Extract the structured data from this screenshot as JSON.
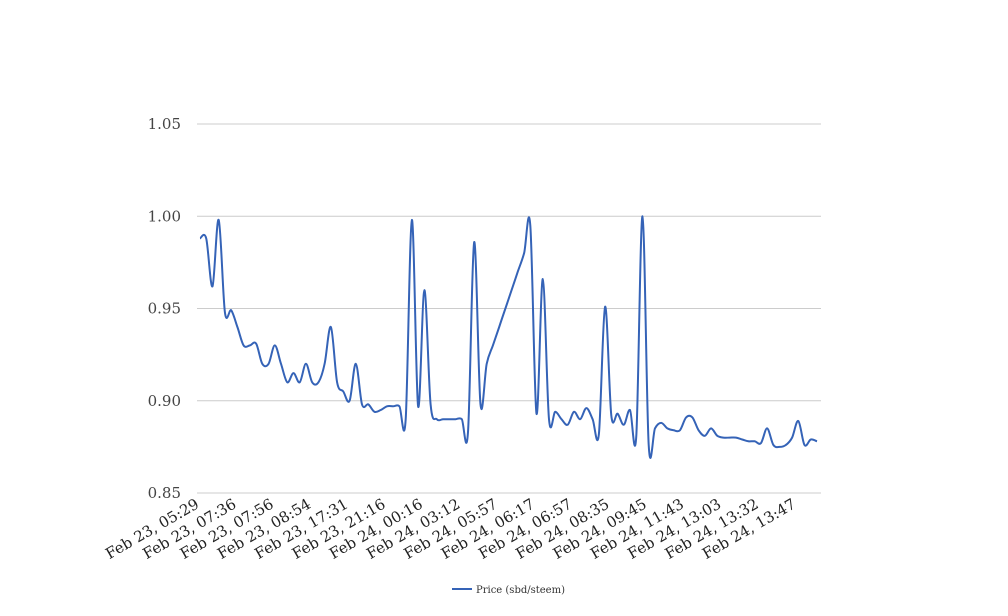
{
  "chart_data": {
    "type": "line",
    "ylim": [
      0.85,
      1.05
    ],
    "yticks": [
      "1.05",
      "1.00",
      "0.95",
      "0.90",
      "0.85"
    ],
    "grid": true,
    "legend_position": "bottom-center",
    "xtick_labels": [
      "Feb 23, 05:29",
      "Feb 23, 07:36",
      "Feb 23, 07:56",
      "Feb 23, 08:54",
      "Feb 23, 17:31",
      "Feb 23, 21:16",
      "Feb 24, 00:16",
      "Feb 24, 03:12",
      "Feb 24, 05:57",
      "Feb 24, 06:17",
      "Feb 24, 06:57",
      "Feb 24, 08:35",
      "Feb 24, 09:45",
      "Feb 24, 11:43",
      "Feb 24, 13:03",
      "Feb 24, 13:32",
      "Feb 24, 13:47"
    ],
    "series": [
      {
        "name": "Price (sbd/steem)",
        "color": "#3563b7",
        "values": [
          0.988,
          0.988,
          0.962,
          0.998,
          0.948,
          0.949,
          0.94,
          0.93,
          0.93,
          0.931,
          0.92,
          0.92,
          0.93,
          0.92,
          0.91,
          0.915,
          0.91,
          0.92,
          0.91,
          0.91,
          0.92,
          0.94,
          0.91,
          0.905,
          0.9,
          0.92,
          0.898,
          0.898,
          0.894,
          0.895,
          0.897,
          0.897,
          0.897,
          0.89,
          0.998,
          0.897,
          0.96,
          0.898,
          0.89,
          0.89,
          0.89,
          0.89,
          0.89,
          0.883,
          0.986,
          0.898,
          0.92,
          0.93,
          0.94,
          0.95,
          0.96,
          0.97,
          0.98,
          0.995,
          0.893,
          0.966,
          0.89,
          0.894,
          0.89,
          0.887,
          0.894,
          0.89,
          0.896,
          0.89,
          0.882,
          0.951,
          0.892,
          0.893,
          0.887,
          0.895,
          0.881,
          1.0,
          0.876,
          0.885,
          0.888,
          0.885,
          0.884,
          0.884,
          0.891,
          0.891,
          0.884,
          0.881,
          0.885,
          0.881,
          0.88,
          0.88,
          0.88,
          0.879,
          0.878,
          0.878,
          0.877,
          0.885,
          0.876,
          0.875,
          0.876,
          0.88,
          0.889,
          0.876,
          0.879,
          0.878
        ]
      }
    ]
  }
}
